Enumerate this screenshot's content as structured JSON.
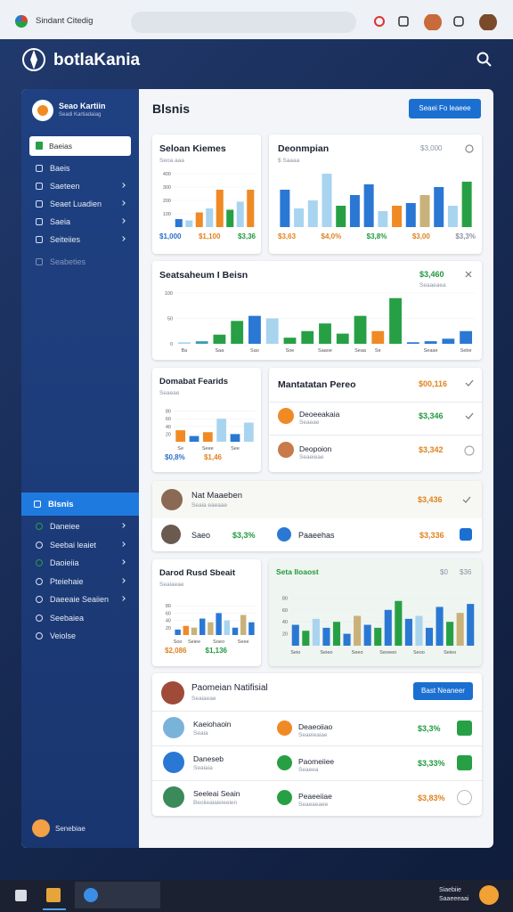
{
  "browser": {
    "tab_title": "Sindant Citedig"
  },
  "header": {
    "brand": "botlaKania"
  },
  "sidebar": {
    "profile": {
      "name": "Seao Kartiin",
      "subtitle": "Seadi Kartiadaiag"
    },
    "search": "Baeias",
    "nav": [
      "Baeis",
      "Saeteen",
      "Seaet Luadien",
      "Saeia",
      "Seiteiies",
      "Seabeties"
    ],
    "active": "Blsnis",
    "nav2": [
      "Daneiee",
      "Seebai leaiet",
      "Daoieiia",
      "Pteiehaie",
      "Daeeaie Seaiien",
      "Seebaiea",
      "Veiolse"
    ],
    "footer": "Senebiae"
  },
  "main": {
    "title": "Blsnis",
    "button": "Seaei Fo leaeee",
    "cards": {
      "sales": {
        "title": "Seloan Kiemes",
        "subtitle": "Seoa aaa",
        "chart": {
          "type": "bar",
          "ylim": [
            0,
            400
          ],
          "yticks": [
            100,
            200,
            300,
            400
          ],
          "values": [
            60,
            50,
            110,
            140,
            280,
            130,
            190,
            280
          ],
          "colors": [
            "#2a78d4",
            "#a8d4f0",
            "#f08a24",
            "#a8d4f0",
            "#f08a24",
            "#27a045",
            "#a8d4f0",
            "#f08a24"
          ]
        },
        "footer": [
          "$1,000",
          "$1,100",
          "$3,36"
        ]
      },
      "comparison": {
        "title": "Deonmpian",
        "subtitle": "$ Saaaa",
        "amount": "$3,000",
        "chart": {
          "type": "bar",
          "ylim": [
            0,
            100
          ],
          "values": [
            70,
            35,
            50,
            100,
            40,
            60,
            80,
            30,
            40,
            45,
            60,
            75,
            40,
            85
          ],
          "colors": [
            "#2a78d4",
            "#a8d4f0",
            "#a8d4f0",
            "#a8d4f0",
            "#27a045",
            "#2a78d4",
            "#2a78d4",
            "#a8d4f0",
            "#f08a24",
            "#2a78d4",
            "#c9b27a",
            "#2a78d4",
            "#a8d4f0",
            "#27a045"
          ]
        },
        "footer": [
          "$3,63",
          "$4,0%",
          "$3,8%",
          "$3,00",
          "$3,3%"
        ]
      },
      "statistics": {
        "title": "Seatsaheum I Beisn",
        "amount": "$3,460",
        "subtitle": "Seaaeaea",
        "chart": {
          "type": "bar",
          "ylim": [
            0,
            100
          ],
          "yticks": [
            0,
            50,
            100
          ],
          "values": [
            3,
            5,
            18,
            45,
            55,
            50,
            12,
            25,
            40,
            20,
            55,
            25,
            90,
            3,
            5,
            10,
            25
          ],
          "colors": [
            "#a8d4f0",
            "#3a9db0",
            "#27a045",
            "#27a045",
            "#2a78d4",
            "#a8d4f0",
            "#27a045",
            "#27a045",
            "#27a045",
            "#27a045",
            "#27a045",
            "#f08a24",
            "#27a045",
            "#2a78d4",
            "#2a78d4",
            "#2a78d4",
            "#2a78d4"
          ],
          "categories": [
            "Ba",
            null,
            "Saa",
            null,
            "Sao",
            null,
            "Soe",
            null,
            "Saaoe",
            null,
            "Seaa",
            "Se",
            null,
            null,
            "Seaae",
            null,
            "Sebe"
          ]
        }
      },
      "domabat": {
        "title": "Domabat Fearids",
        "subtitle": "Seaeae",
        "chart": {
          "type": "bar",
          "ylim": [
            0,
            100
          ],
          "yticks": [
            20,
            40,
            60,
            80
          ],
          "values": [
            30,
            15,
            25,
            60,
            20,
            50
          ],
          "colors": [
            "#f08a24",
            "#2a78d4",
            "#f08a24",
            "#a8d4f0",
            "#2a78d4",
            "#a8d4f0"
          ],
          "categories": [
            "Se",
            null,
            "Seee",
            null,
            "See",
            null
          ]
        },
        "footer": [
          "$0,8%",
          "$1,46"
        ]
      },
      "maintenance": {
        "title": "Mantatatan Pereo",
        "amount": "$00,116",
        "rows": [
          {
            "name": "Deoeeakaia",
            "subtitle": "Seaeae",
            "amount": "$3,346"
          },
          {
            "name": "Deopoion",
            "subtitle": "Seaeieae",
            "amount": "$3,342"
          }
        ]
      },
      "person": {
        "name": "Nat Maaeben",
        "subtitle": "Seaia eaeaae",
        "amount": "$3,436",
        "row": {
          "name": "Saeo",
          "amount": "$3,3%",
          "item": "Paaeehas",
          "item_amount": "$3,336"
        }
      },
      "daily": {
        "title": "Darod Rusd Sbeait",
        "subtitle": "Seaiaeae",
        "chart": {
          "type": "bar",
          "ylim": [
            0,
            100
          ],
          "yticks": [
            20,
            40,
            60,
            80
          ],
          "values": [
            15,
            25,
            20,
            45,
            35,
            60,
            40,
            20,
            55,
            35
          ],
          "colors": [
            "#2a78d4",
            "#f08a24",
            "#c9b27a",
            "#2a78d4",
            "#c9b27a",
            "#2a78d4",
            "#a8d4f0",
            "#2a78d4",
            "#c9b27a",
            "#2a78d4"
          ],
          "categories": [
            "Soo",
            null,
            "Seiee",
            null,
            null,
            "Soeo",
            null,
            null,
            "Seee",
            null
          ]
        },
        "footer": [
          "$2,086",
          "$1,136"
        ]
      },
      "status": {
        "title": "Seta Iloaost",
        "amounts": [
          "$0",
          "$36"
        ],
        "chart": {
          "type": "bar",
          "ylim": [
            0,
            100
          ],
          "yticks": [
            20,
            40,
            60,
            80
          ],
          "values": [
            35,
            25,
            45,
            30,
            40,
            20,
            50,
            35,
            30,
            60,
            75,
            45,
            50,
            30,
            65,
            40,
            55,
            70
          ],
          "colors": [
            "#2a78d4",
            "#27a045",
            "#a8d4f0",
            "#2a78d4",
            "#27a045",
            "#2a78d4",
            "#c9b27a",
            "#2a78d4",
            "#27a045",
            "#2a78d4",
            "#27a045",
            "#2a78d4",
            "#a8d4f0",
            "#2a78d4",
            "#2a78d4",
            "#27a045",
            "#c9b27a",
            "#2a78d4"
          ],
          "categories": [
            "Seio",
            null,
            null,
            "Seieo",
            null,
            null,
            "Seeo",
            null,
            null,
            "Seoeeo",
            null,
            null,
            "Seoo",
            null,
            null,
            "Seieo",
            null,
            null
          ]
        }
      },
      "notifications": {
        "title": "Paomeian Natifisial",
        "subtitle": "Seaiaeae",
        "button": "Bast Neaneer",
        "rows": [
          {
            "name": "Kaeiohaoin",
            "subtitle": "Seaia",
            "item": "Deaeoiiao",
            "item_subtitle": "Seaeieaiae",
            "amount": "$3,3%"
          },
          {
            "name": "Daneseb",
            "subtitle": "Seaiaia",
            "item": "Paomeiiee",
            "item_subtitle": "Seaeea",
            "amount": "$3,33%"
          },
          {
            "name": "Seeleai Seain",
            "subtitle": "Beoiieaiaieieeien",
            "item": "Peaeeiiae",
            "item_subtitle": "Seaeaeaee",
            "amount": "$3,83%"
          }
        ]
      }
    }
  },
  "taskbar": {
    "clock": [
      "Siaebiie",
      "Saaeeeaai"
    ]
  }
}
